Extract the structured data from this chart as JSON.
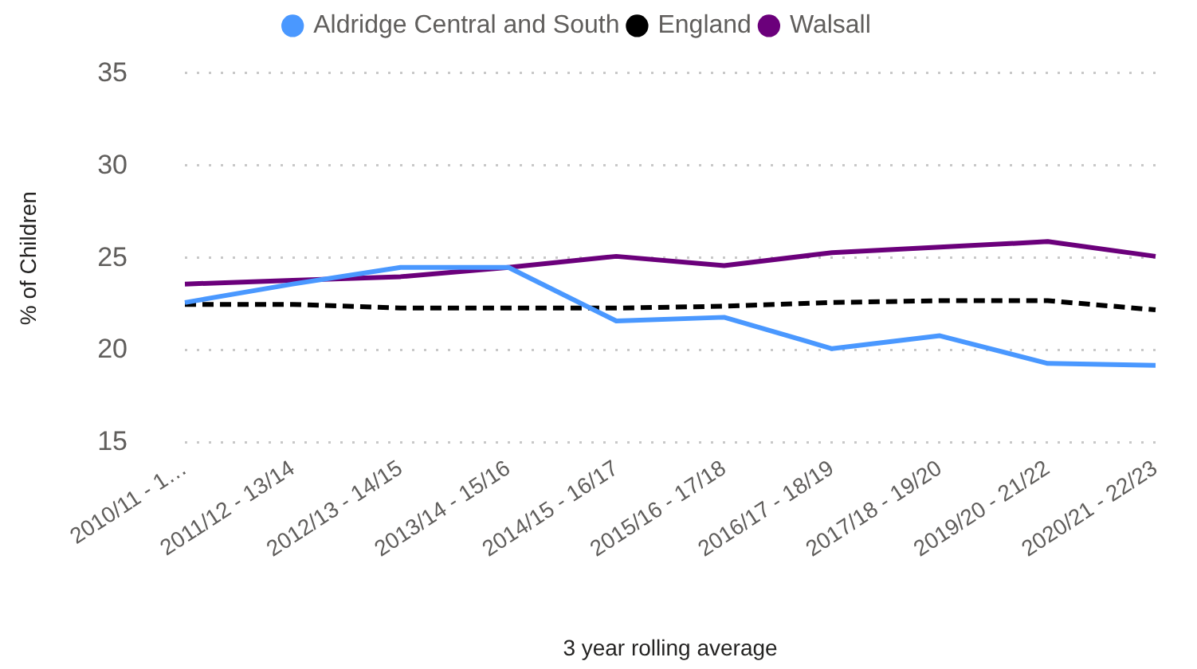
{
  "chart_data": {
    "type": "line",
    "categories": [
      "2010/11 - 1…",
      "2011/12 - 13/14",
      "2012/13 - 14/15",
      "2013/14 - 15/16",
      "2014/15 - 16/17",
      "2015/16 - 17/18",
      "2016/17 - 18/19",
      "2017/18 - 19/20",
      "2019/20 - 21/22",
      "2020/21 - 22/23"
    ],
    "series": [
      {
        "name": "Aldridge Central and South",
        "color": "#4a98ff",
        "values": [
          22.6,
          23.6,
          24.5,
          24.5,
          21.6,
          21.8,
          20.1,
          20.8,
          19.3,
          19.2
        ]
      },
      {
        "name": "England",
        "color": "#000000",
        "line_style": "dashed",
        "values": [
          22.5,
          22.5,
          22.3,
          22.3,
          22.3,
          22.4,
          22.6,
          22.7,
          22.7,
          22.2
        ]
      },
      {
        "name": "Walsall",
        "color": "#6b007b",
        "values": [
          23.6,
          23.8,
          24.0,
          24.5,
          25.1,
          24.6,
          25.3,
          25.6,
          25.9,
          25.1
        ]
      }
    ],
    "xlabel": "3 year rolling average",
    "ylabel": "% of Children",
    "ylim": [
      15,
      35
    ],
    "yticks": [
      15,
      20,
      25,
      30,
      35
    ],
    "grid": "y",
    "legend": "top",
    "marker": "none"
  }
}
